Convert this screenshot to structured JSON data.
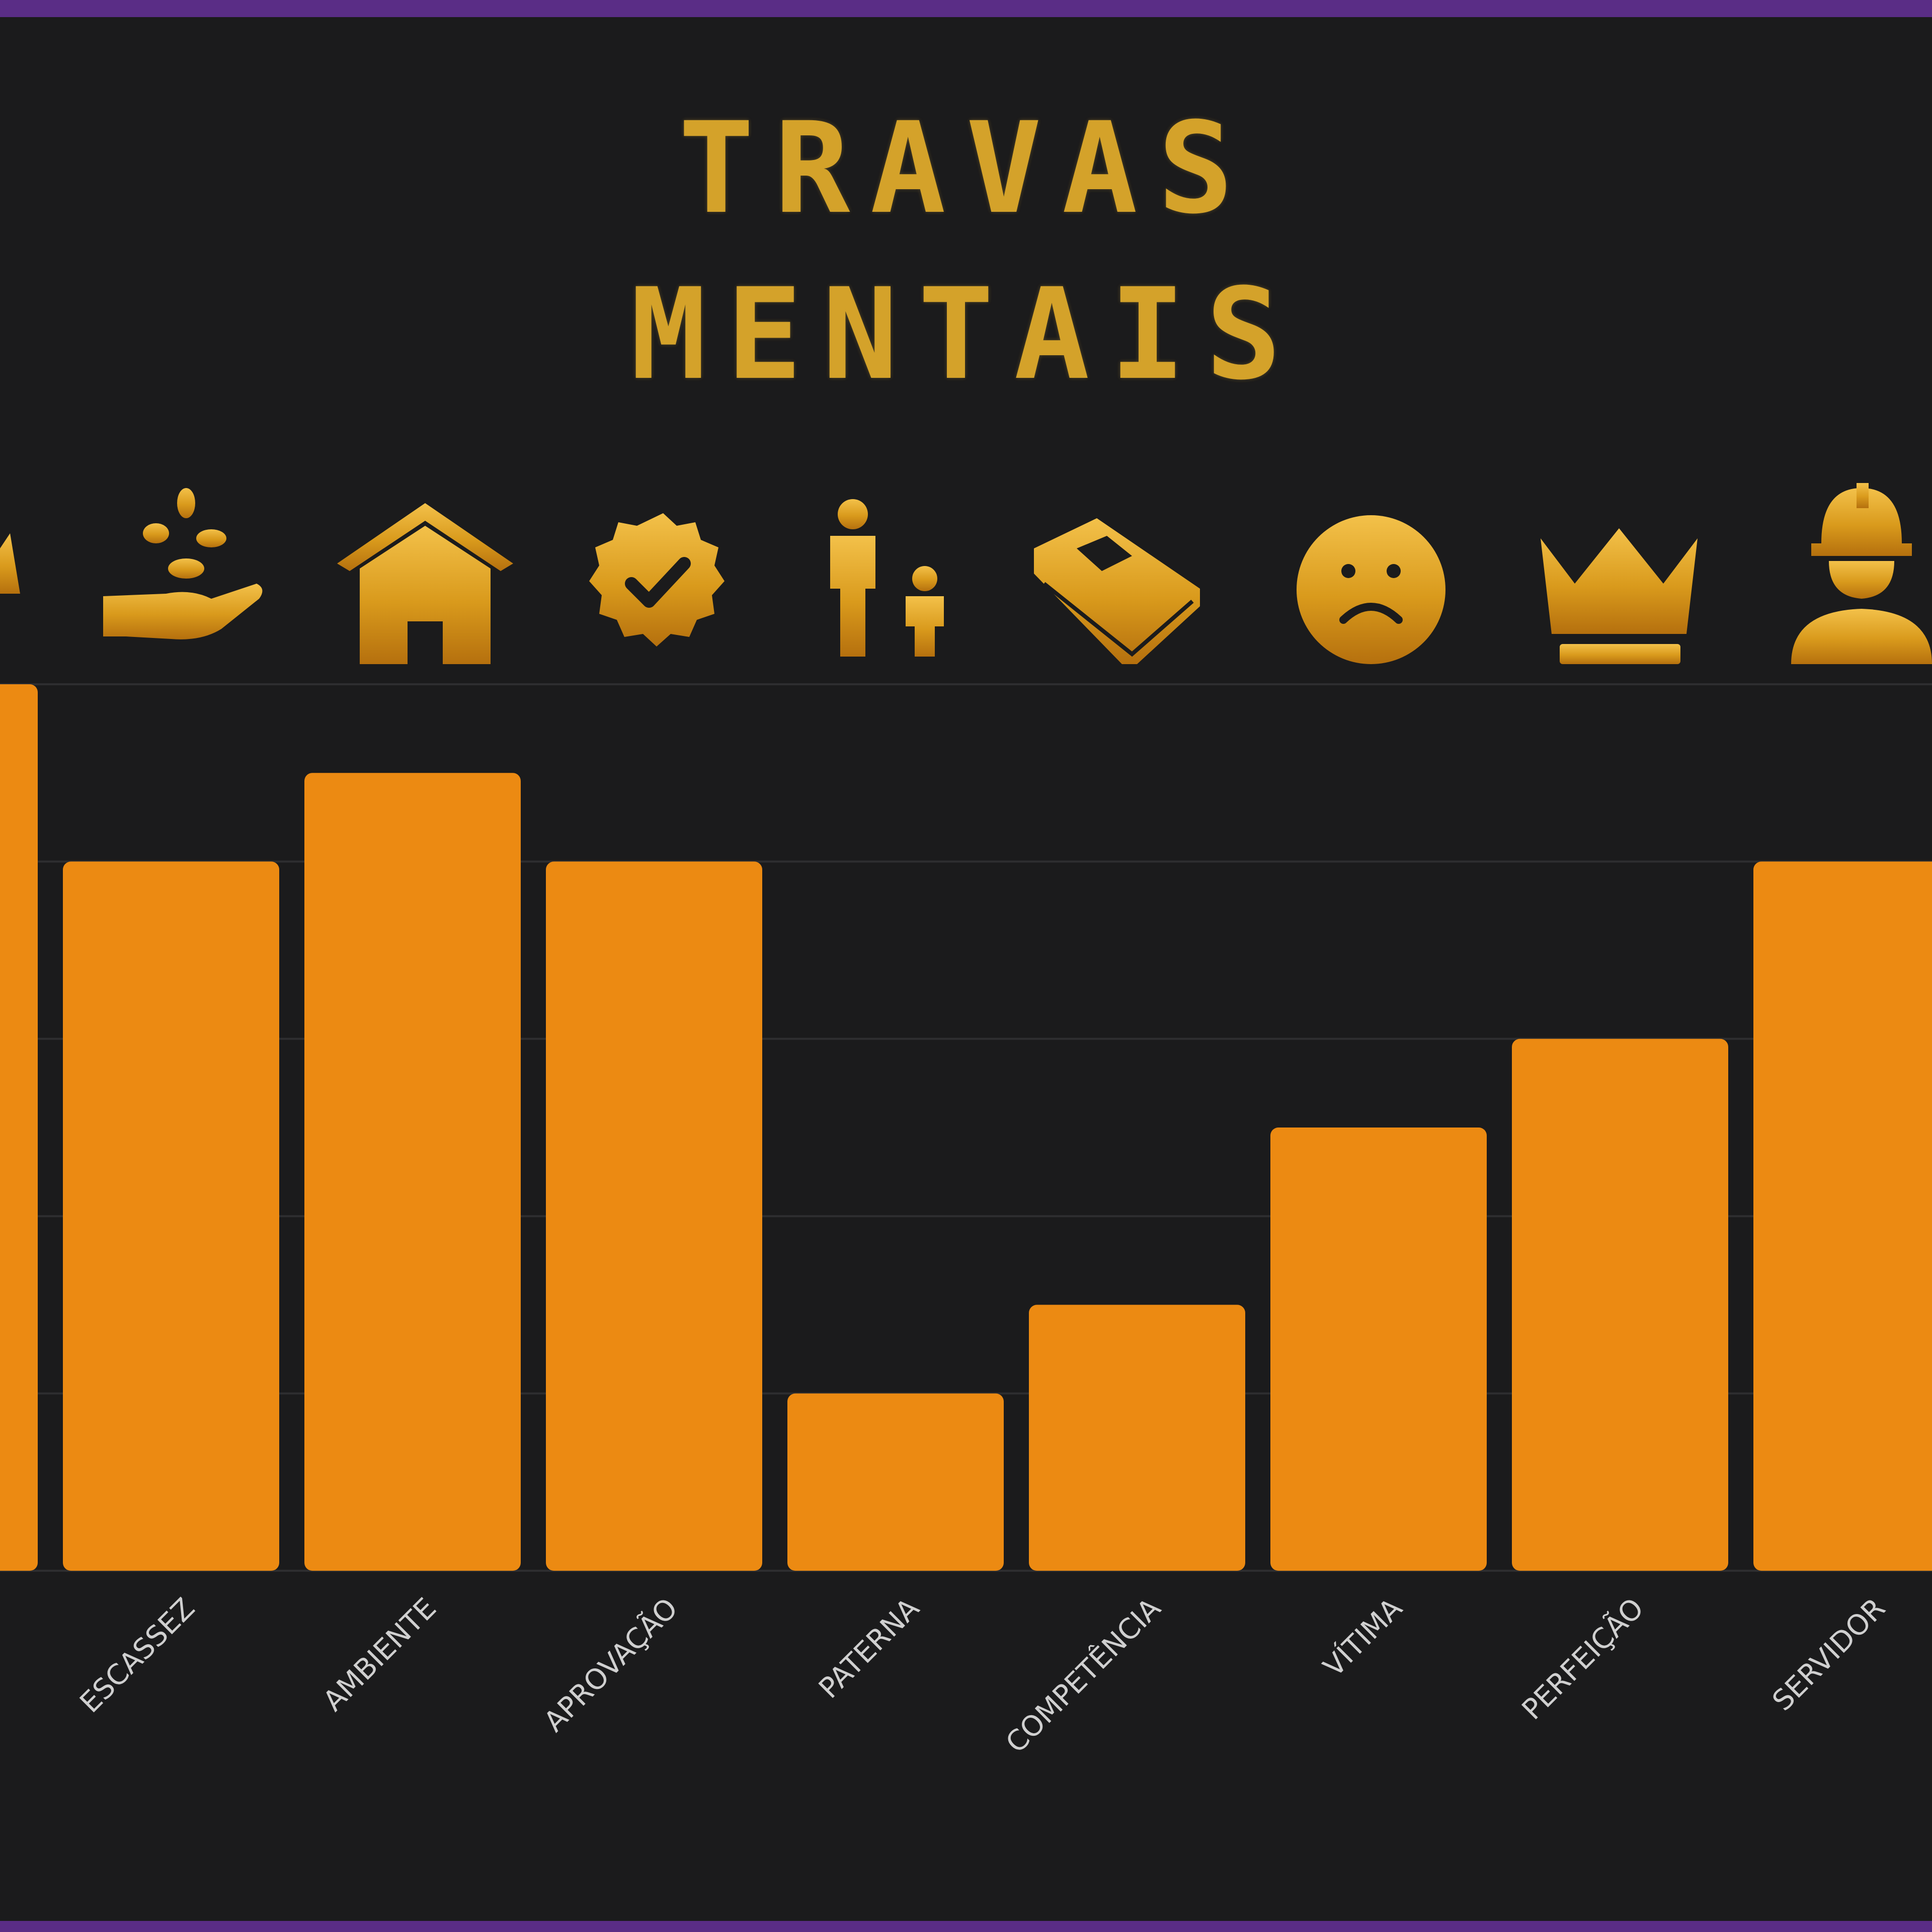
{
  "title_line1": "TRAVAS",
  "title_line2": "MENTAIS",
  "icons": [
    "money-bag-icon",
    "hand-coins-icon",
    "house-icon",
    "verified-badge-icon",
    "parent-child-icon",
    "book-icon",
    "sad-face-icon",
    "crown-icon",
    "worker-helmet-icon"
  ],
  "colors": {
    "background": "#1b1b1c",
    "bar": "#ec8a12",
    "gold": "#d4a22a",
    "frame": "#5a2d86",
    "grid": "#2e2e30",
    "label": "#d0d0d0"
  },
  "chart_data": {
    "type": "bar",
    "categories": [
      "",
      "ESCASSEZ",
      "AMBIENTE",
      "APROVAÇÃO",
      "PATERNA",
      "COMPETÊNCIA",
      "VÍTIMA",
      "PERFEIÇÃO",
      "SERVIDOR"
    ],
    "values": [
      10,
      8,
      9,
      8,
      2,
      3,
      5,
      6,
      8
    ],
    "ylim": [
      0,
      10
    ],
    "grid": true,
    "title": "TRAVAS MENTAIS",
    "xlabel": "",
    "ylabel": ""
  }
}
